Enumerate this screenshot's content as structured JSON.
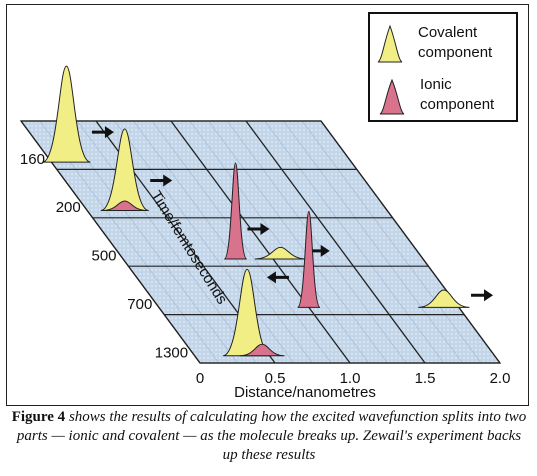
{
  "legend": {
    "covalent": {
      "line1": "Covalent",
      "line2": "component",
      "color": "#f2ee86"
    },
    "ionic": {
      "line1": "Ionic",
      "line2": "component",
      "color": "#d9728c"
    }
  },
  "axis": {
    "x_label": "Distance/nanometres",
    "y_label": "Time/femtoseconds",
    "x_ticks": [
      "0",
      "0.5",
      "1.0",
      "1.5",
      "2.0"
    ],
    "time_labels": [
      "160",
      "200",
      "500",
      "700",
      "1300"
    ]
  },
  "caption": {
    "label": "Figure 4",
    "text": " shows the results of calculating how the excited wavefunction splits into two parts — ionic and covalent — as the molecule breaks up. Zewail's experiment backs up these results"
  },
  "colors": {
    "grid_fill": "#c8d8ea",
    "grid_line": "#222222",
    "arrow": "#111111"
  },
  "chart_data": {
    "type": "area",
    "x_range": [
      0,
      2.0
    ],
    "times_fs": [
      160,
      200,
      500,
      700,
      1300
    ],
    "peaks": [
      {
        "time": 160,
        "component": "covalent",
        "x": 0.1,
        "relative_height": 1.0
      },
      {
        "time": 200,
        "component": "covalent",
        "x": 0.25,
        "relative_height": 0.85
      },
      {
        "time": 200,
        "component": "ionic",
        "x": 0.25,
        "relative_height": 0.1
      },
      {
        "time": 500,
        "component": "ionic",
        "x": 0.75,
        "relative_height": 1.0
      },
      {
        "time": 500,
        "component": "covalent",
        "x": 1.05,
        "relative_height": 0.12
      },
      {
        "time": 700,
        "component": "ionic",
        "x": 1.0,
        "relative_height": 1.0
      },
      {
        "time": 700,
        "component": "covalent",
        "x": 1.9,
        "relative_height": 0.18
      },
      {
        "time": 1300,
        "component": "covalent",
        "x": 0.35,
        "relative_height": 0.9
      },
      {
        "time": 1300,
        "component": "ionic",
        "x": 0.45,
        "relative_height": 0.12
      }
    ]
  }
}
